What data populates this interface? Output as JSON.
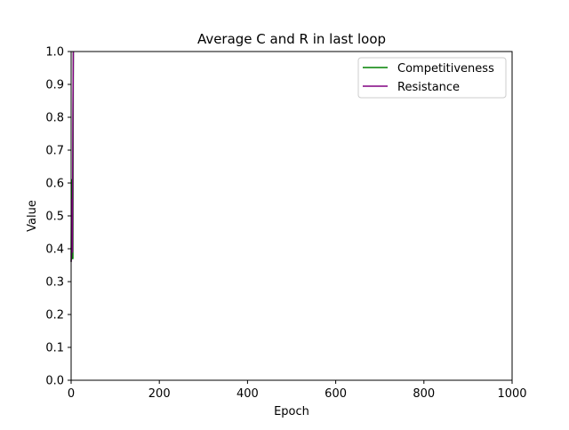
{
  "chart_data": {
    "type": "line",
    "title": "Average C and R in last loop",
    "xlabel": "Epoch",
    "ylabel": "Value",
    "xlim": [
      0,
      1000
    ],
    "ylim": [
      0.0,
      1.0
    ],
    "xticks": [
      "0",
      "200",
      "400",
      "600",
      "800",
      "1000"
    ],
    "yticks": [
      "0.0",
      "0.1",
      "0.2",
      "0.3",
      "0.4",
      "0.5",
      "0.6",
      "0.7",
      "0.8",
      "0.9",
      "1.0"
    ],
    "grid": false,
    "legend_position": "top-right",
    "series": [
      {
        "name": "Competitiveness",
        "color": "#008000",
        "x": [
          0,
          1,
          2,
          3,
          4,
          5
        ],
        "y": [
          0.36,
          0.61,
          0.37,
          0.39,
          0.37,
          1.0
        ]
      },
      {
        "name": "Resistance",
        "color": "#800080",
        "x": [
          0,
          1,
          2,
          3,
          4,
          5
        ],
        "y": [
          0.36,
          0.38,
          0.55,
          0.39,
          0.8,
          1.0
        ]
      }
    ]
  }
}
